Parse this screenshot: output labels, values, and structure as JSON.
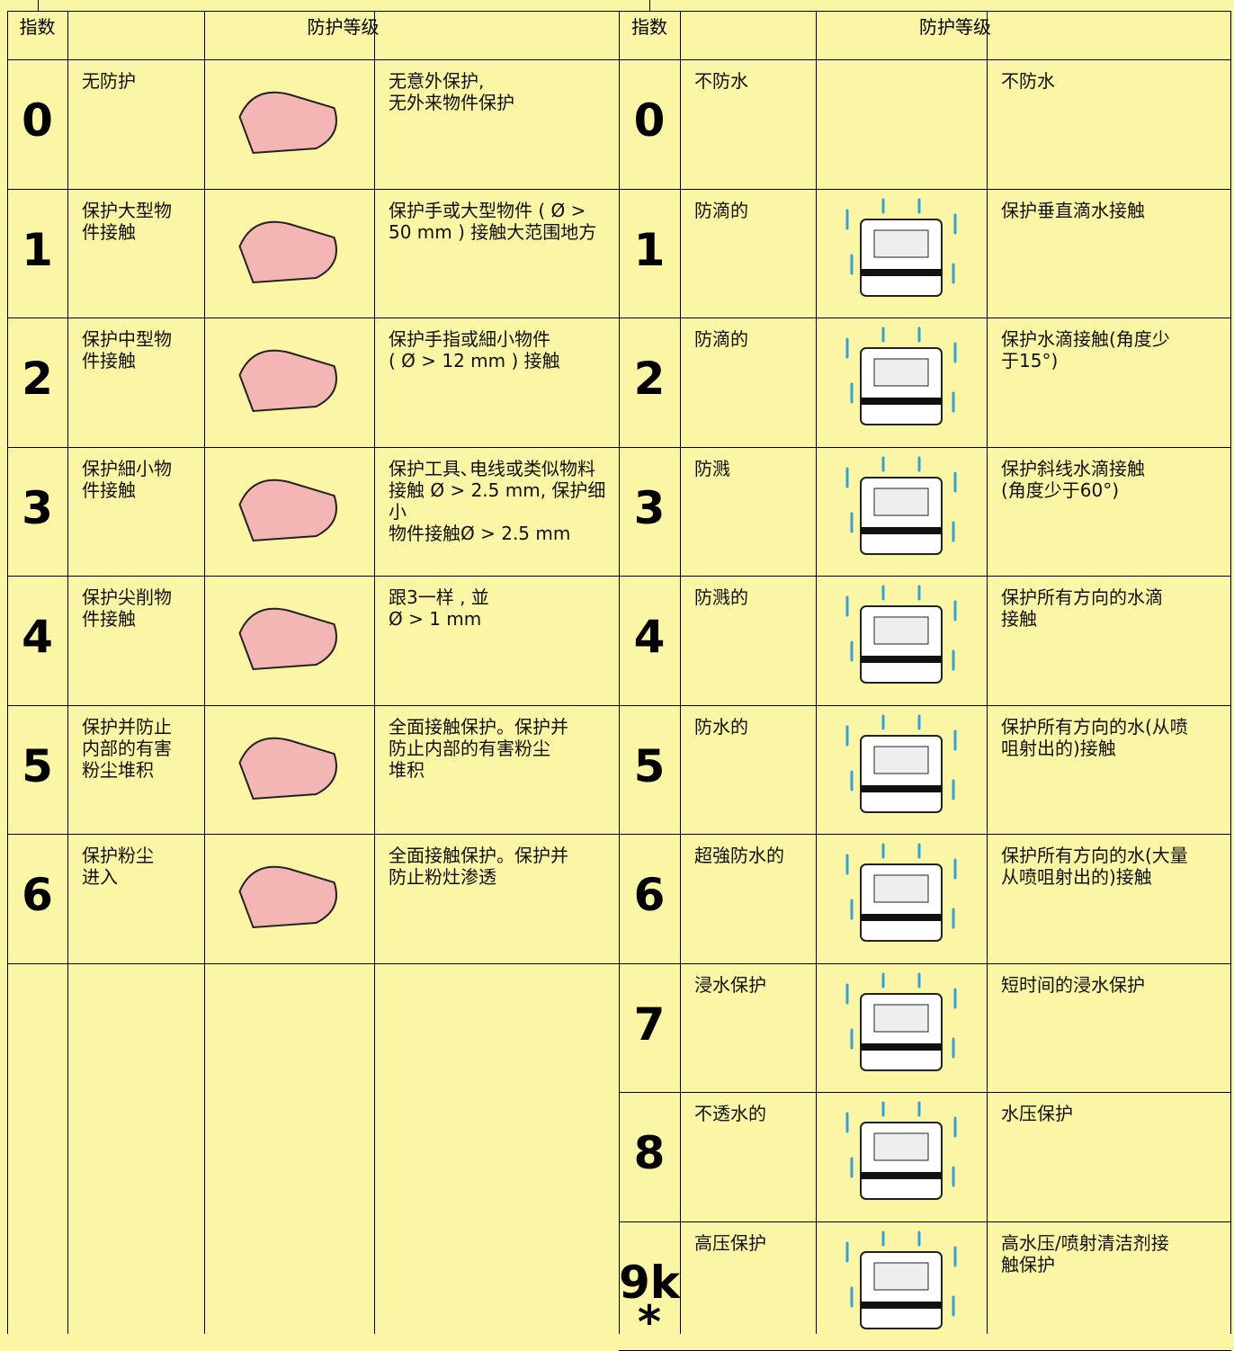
{
  "left": {
    "header": {
      "index": "指数",
      "level": "防护等级"
    },
    "rows": [
      {
        "index": "0",
        "name": "无防护",
        "desc": "无意外保护,\n无外来物件保护"
      },
      {
        "index": "1",
        "name": "保护大型物\n件接触",
        "desc": "保护手或大型物件 ( Ø >\n50 mm ) 接触大范围地方"
      },
      {
        "index": "2",
        "name": "保护中型物\n件接触",
        "desc": "保护手指或細小物件\n( Ø > 12 mm ) 接触"
      },
      {
        "index": "3",
        "name": "保护細小物\n件接触",
        "desc": "保护工具､电线或类似物料\n接触 Ø > 2.5 mm, 保护细小\n物件接触Ø > 2.5 mm"
      },
      {
        "index": "4",
        "name": "保护尖削物\n件接触",
        "desc": "跟3一样 , 並\nØ > 1 mm"
      },
      {
        "index": "5",
        "name": "保护并防止\n内部的有害\n粉尘堆积",
        "desc": "全面接触保护。保护并\n防止内部的有害粉尘\n堆积"
      },
      {
        "index": "6",
        "name": "保护粉尘\n进入",
        "desc": "全面接触保护。保护并\n防止粉灶渗透"
      }
    ]
  },
  "right": {
    "header": {
      "index": "指数",
      "level": "防护等级"
    },
    "rows": [
      {
        "index": "0",
        "name": "不防水",
        "desc": "不防水"
      },
      {
        "index": "1",
        "name": "防滴的",
        "desc": "保护垂直滴水接触"
      },
      {
        "index": "2",
        "name": "防滴的",
        "desc": "保护水滴接触(角度少\n于15°)"
      },
      {
        "index": "3",
        "name": "防溅",
        "desc": "保护斜线水滴接触\n(角度少于60°)"
      },
      {
        "index": "4",
        "name": "防溅的",
        "desc": "保护所有方向的水滴\n接触"
      },
      {
        "index": "5",
        "name": "防水的",
        "desc": "保护所有方向的水(从喷\n咀射出的)接触"
      },
      {
        "index": "6",
        "name": "超強防水的",
        "desc": "保护所有方向的水(大量\n从喷咀射出的)接触"
      },
      {
        "index": "7",
        "name": "浸水保护",
        "desc": "短时间的浸水保护"
      },
      {
        "index": "8",
        "name": "不透水的",
        "desc": "水压保护"
      },
      {
        "index": "9k\n*",
        "name": "高压保护",
        "desc": "高水压/喷射清洁剂接\n触保护"
      }
    ]
  }
}
